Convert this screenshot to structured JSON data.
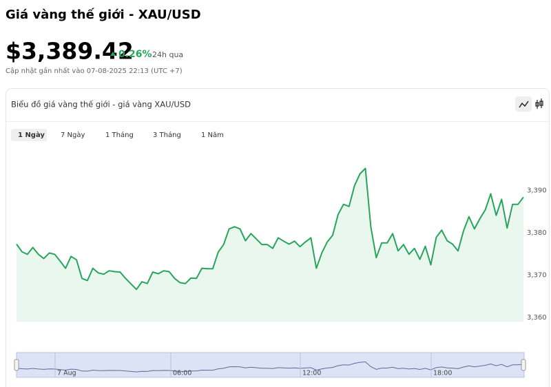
{
  "header": {
    "title": "Giá vàng thế giới - XAU/USD",
    "price": "$3,389.42",
    "change": "0.26%",
    "period": "24h qua",
    "updated": "Cập nhật gần nhất vào 07-08-2025 22:13 (UTC +7)"
  },
  "card": {
    "title": "Biểu đồ giá vàng thế giới - giá vàng XAU/USD",
    "tabs": [
      "1 Ngày",
      "7 Ngày",
      "1 Tháng",
      "3 Tháng",
      "1 Năm"
    ]
  },
  "chart_data": {
    "type": "line",
    "color": "#25a55a",
    "fill": "#eaf7ef",
    "values": [
      3377.3,
      3375.5,
      3374.9,
      3376.5,
      3374.9,
      3373.9,
      3375.2,
      3374.9,
      3373.3,
      3371.6,
      3374.4,
      3373.6,
      3369.2,
      3368.7,
      3371.6,
      3370.5,
      3370.2,
      3371.0,
      3370.8,
      3370.7,
      3369.2,
      3367.9,
      3366.6,
      3368.4,
      3368.0,
      3370.7,
      3370.3,
      3371.0,
      3370.8,
      3369.2,
      3368.2,
      3368.0,
      3369.3,
      3369.2,
      3371.6,
      3371.5,
      3371.5,
      3375.4,
      3377.2,
      3380.9,
      3381.4,
      3380.9,
      3378.1,
      3379.8,
      3378.5,
      3377.2,
      3377.2,
      3376.3,
      3378.8,
      3378.0,
      3377.3,
      3378.0,
      3376.7,
      3377.8,
      3378.8,
      3371.6,
      3375.2,
      3377.8,
      3379.4,
      3384.3,
      3386.7,
      3386.2,
      3391.1,
      3393.9,
      3395.2,
      3381.4,
      3374.1,
      3377.6,
      3377.6,
      3379.8,
      3375.7,
      3377.2,
      3374.9,
      3376.3,
      3373.7,
      3376.8,
      3372.4,
      3378.9,
      3380.6,
      3378.1,
      3377.3,
      3375.7,
      3380.4,
      3383.8,
      3380.9,
      3383.3,
      3385.4,
      3389.2,
      3384.1,
      3387.9,
      3381.1,
      3386.7,
      3386.7,
      3388.4
    ],
    "ylim": [
      3359,
      3400
    ],
    "yticks": [
      {
        "value": 3360,
        "label": "3,360"
      },
      {
        "value": 3370,
        "label": "3,370"
      },
      {
        "value": 3380,
        "label": "3,380"
      },
      {
        "value": 3390,
        "label": "3,390"
      }
    ],
    "navigator_labels": [
      "7 Aug",
      "06:00",
      "12:00",
      "18:00"
    ]
  }
}
